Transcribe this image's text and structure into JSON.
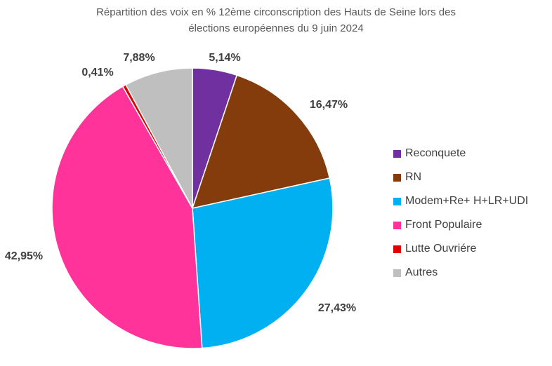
{
  "title": {
    "line1": "Répartition des voix en % 12ème circonscription des Hauts de Seine  lors des",
    "line2": "élections européennes du 9 juin 2024"
  },
  "chart_data": {
    "type": "pie",
    "title": "Répartition des voix en % 12ème circonscription des Hauts de Seine  lors des élections européennes du 9 juin 2024",
    "legend_position": "right",
    "start": "top",
    "direction": "clockwise",
    "categories": [
      "Reconquete",
      "RN",
      "Modem+Re+ H+LR+UDI",
      "Front Populaire",
      "Lutte Ouvriére",
      "Autres"
    ],
    "values": [
      5.14,
      16.47,
      27.43,
      42.95,
      0.41,
      7.88
    ],
    "labels": [
      "5,14%",
      "16,47%",
      "27,43%",
      "42,95%",
      "0,41%",
      "7,88%"
    ],
    "colors": [
      "#7030A0",
      "#843C0C",
      "#00B0F0",
      "#FF3399",
      "#E00000",
      "#BFBFBF"
    ]
  }
}
